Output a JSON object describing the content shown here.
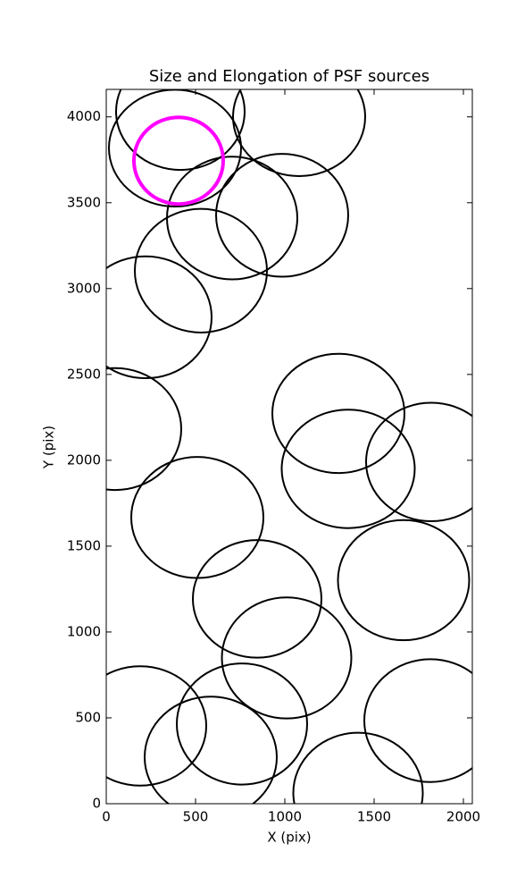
{
  "chart_data": {
    "type": "ellipse",
    "title": "Size and Elongation of PSF sources",
    "x_label": "X (pix)",
    "y_label": "Y (pix)",
    "xlim": [
      0,
      2050
    ],
    "ylim": [
      0,
      4160
    ],
    "xticks": [
      0,
      500,
      1000,
      1500,
      2000
    ],
    "yticks": [
      0,
      500,
      1000,
      1500,
      2000,
      2500,
      3000,
      3500,
      4000
    ],
    "series": [
      {
        "color": "#000000",
        "linewidth": 2,
        "x": [
          415,
          385,
          1080,
          705,
          985,
          530,
          220,
          50,
          1300,
          1355,
          1820,
          510,
          845,
          1665,
          1010,
          190,
          760,
          585,
          1815,
          1410
        ],
        "y": [
          4031,
          3818,
          4000,
          3411,
          3427,
          3104,
          2833,
          2182,
          2273,
          1950,
          1990,
          1667,
          1193,
          1302,
          849,
          453,
          464,
          271,
          484,
          63
        ],
        "width": [
          720,
          740,
          740,
          730,
          740,
          740,
          740,
          740,
          740,
          745,
          730,
          740,
          720,
          735,
          725,
          740,
          730,
          740,
          740,
          725
        ],
        "height": [
          680,
          680,
          690,
          715,
          715,
          720,
          710,
          710,
          695,
          690,
          690,
          705,
          685,
          700,
          705,
          695,
          705,
          705,
          715,
          700
        ]
      },
      {
        "color": "#ff00ff",
        "linewidth": 4,
        "x": [
          405
        ],
        "y": [
          3745
        ],
        "width": [
          500
        ],
        "height": [
          505
        ]
      }
    ]
  }
}
